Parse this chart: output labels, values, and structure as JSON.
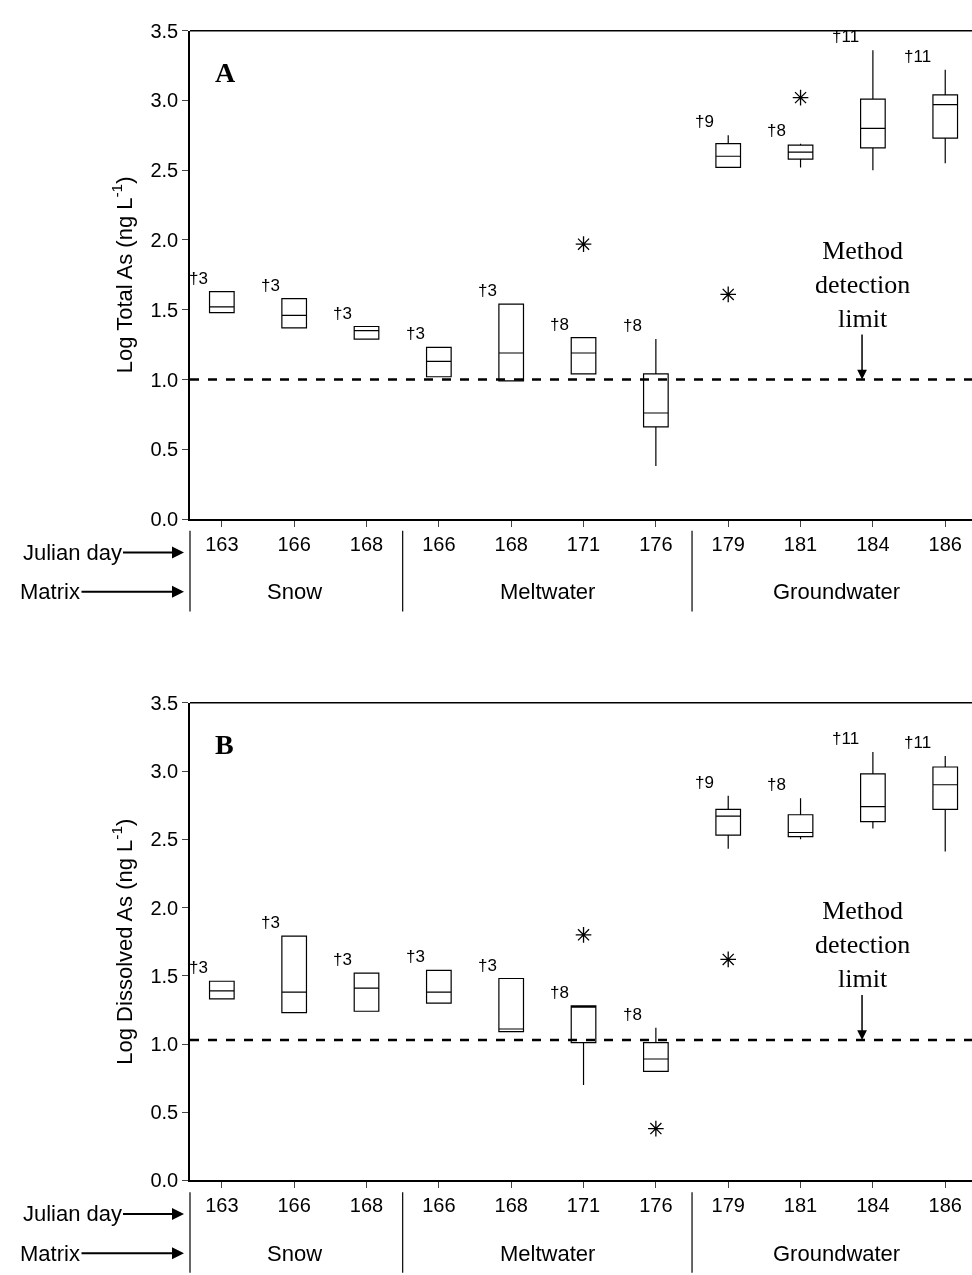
{
  "chart_data": [
    {
      "type": "box",
      "ylabel": "Log Total As (ng L$^{-1}$)",
      "categories": [
        "163",
        "166",
        "168",
        "166",
        "168",
        "171",
        "176",
        "179",
        "181",
        "184",
        "186"
      ],
      "boxes": [
        {
          "low": 1.48,
          "q1": 1.48,
          "median": 1.52,
          "q3": 1.63,
          "high": 1.63
        },
        {
          "low": 1.37,
          "q1": 1.37,
          "median": 1.46,
          "q3": 1.58,
          "high": 1.58
        },
        {
          "low": 1.29,
          "q1": 1.29,
          "median": 1.35,
          "q3": 1.38,
          "high": 1.38
        },
        {
          "low": 1.02,
          "q1": 1.02,
          "median": 1.13,
          "q3": 1.23,
          "high": 1.23
        },
        {
          "low": 0.99,
          "q1": 0.99,
          "median": 1.19,
          "q3": 1.54,
          "high": 1.54
        },
        {
          "low": 1.04,
          "q1": 1.04,
          "median": 1.19,
          "q3": 1.3,
          "high": 1.3,
          "outliers": [
            1.97
          ]
        },
        {
          "low": 0.38,
          "q1": 0.66,
          "median": 0.76,
          "q3": 1.04,
          "high": 1.29
        },
        {
          "low": 2.52,
          "q1": 2.52,
          "median": 2.6,
          "q3": 2.69,
          "high": 2.75,
          "outliers": [
            1.61
          ]
        },
        {
          "low": 2.52,
          "q1": 2.58,
          "median": 2.63,
          "q3": 2.68,
          "high": 2.69,
          "outliers": [
            3.02
          ]
        },
        {
          "low": 2.5,
          "q1": 2.66,
          "median": 2.8,
          "q3": 3.01,
          "high": 3.36
        },
        {
          "low": 2.55,
          "q1": 2.73,
          "median": 2.97,
          "q3": 3.04,
          "high": 3.22
        }
      ],
      "ylim": [
        0,
        3.5
      ],
      "yticks": [
        {
          "value": 0,
          "label": "0.0"
        },
        {
          "value": 0.5,
          "label": "0.5"
        },
        {
          "value": 1,
          "label": "1.0"
        },
        {
          "value": 1.5,
          "label": "1.5"
        },
        {
          "value": 2,
          "label": "2.0"
        },
        {
          "value": 2.5,
          "label": "2.5"
        },
        {
          "value": 3,
          "label": "3.0"
        },
        {
          "value": 3.5,
          "label": "3.5"
        }
      ],
      "ref_lines": [
        {
          "axis": "y",
          "value": 1.0,
          "label": "Method detection limit",
          "line_style": "dashed",
          "color": "#000000"
        }
      ],
      "marker": "star",
      "annotations": [
        "A",
        "Julian day",
        "Matrix",
        "Snow",
        "Meltwater",
        "Groundwater",
        "†3",
        "†3",
        "†3",
        "†3",
        "†3",
        "†8",
        "†8",
        "†9",
        "†8",
        "†11",
        "†11"
      ]
    },
    {
      "type": "box",
      "ylabel": "Log Dissolved As (ng L$^{-1}$)",
      "categories": [
        "163",
        "166",
        "168",
        "166",
        "168",
        "171",
        "176",
        "179",
        "181",
        "184",
        "186"
      ],
      "boxes": [
        {
          "low": 1.33,
          "q1": 1.33,
          "median": 1.39,
          "q3": 1.46,
          "high": 1.46
        },
        {
          "low": 1.23,
          "q1": 1.23,
          "median": 1.38,
          "q3": 1.79,
          "high": 1.79
        },
        {
          "low": 1.24,
          "q1": 1.24,
          "median": 1.41,
          "q3": 1.52,
          "high": 1.52
        },
        {
          "low": 1.3,
          "q1": 1.3,
          "median": 1.38,
          "q3": 1.54,
          "high": 1.54
        },
        {
          "low": 1.09,
          "q1": 1.09,
          "median": 1.11,
          "q3": 1.48,
          "high": 1.48
        },
        {
          "low": 0.7,
          "q1": 1.01,
          "median": 1.27,
          "q3": 1.28,
          "high": 1.28,
          "outliers": [
            1.8
          ]
        },
        {
          "low": 0.8,
          "q1": 0.8,
          "median": 0.89,
          "q3": 1.01,
          "high": 1.12,
          "outliers": [
            0.38
          ]
        },
        {
          "low": 2.43,
          "q1": 2.53,
          "median": 2.67,
          "q3": 2.72,
          "high": 2.82,
          "outliers": [
            1.62
          ]
        },
        {
          "low": 2.5,
          "q1": 2.52,
          "median": 2.55,
          "q3": 2.68,
          "high": 2.8
        },
        {
          "low": 2.58,
          "q1": 2.63,
          "median": 2.74,
          "q3": 2.98,
          "high": 3.14
        },
        {
          "low": 2.41,
          "q1": 2.72,
          "median": 2.9,
          "q3": 3.03,
          "high": 3.11
        }
      ],
      "ylim": [
        0,
        3.5
      ],
      "yticks": [
        {
          "value": 0,
          "label": "0.0"
        },
        {
          "value": 0.5,
          "label": "0.5"
        },
        {
          "value": 1,
          "label": "1.0"
        },
        {
          "value": 1.5,
          "label": "1.5"
        },
        {
          "value": 2,
          "label": "2.0"
        },
        {
          "value": 2.5,
          "label": "2.5"
        },
        {
          "value": 3,
          "label": "3.0"
        },
        {
          "value": 3.5,
          "label": "3.5"
        }
      ],
      "ref_lines": [
        {
          "axis": "y",
          "value": 1.03,
          "label": "Method detection limit",
          "line_style": "dashed",
          "color": "#000000"
        }
      ],
      "marker": "star",
      "annotations": [
        "B",
        "Julian day",
        "Matrix",
        "Snow",
        "Meltwater",
        "Groundwater",
        "†3",
        "†3",
        "†3",
        "†3",
        "†3",
        "†8",
        "†8",
        "†9",
        "†8",
        "†11",
        "†11"
      ]
    }
  ]
}
